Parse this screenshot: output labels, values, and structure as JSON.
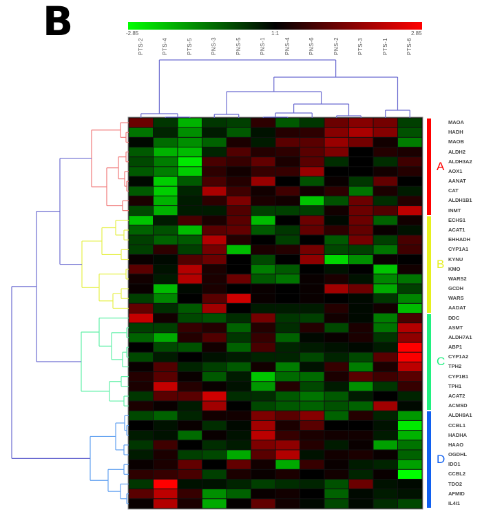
{
  "panel_label": "B",
  "chart_data": {
    "type": "heatmap",
    "color_scale": {
      "min": -2.85,
      "max": 2.85,
      "min_label": "-2.85",
      "mid_label": "1:1",
      "max_label": "2.85",
      "low_color": "#00ff00",
      "mid_color": "#000000",
      "high_color": "#ff0000"
    },
    "columns": [
      "PTS-2",
      "PTS-4",
      "PTS-5",
      "PNS-3",
      "PNS-5",
      "PNS-1",
      "PNS-4",
      "PNS-6",
      "PNS-2",
      "PTS-3",
      "PTS-1",
      "PTS-6"
    ],
    "rows": [
      "MAOA",
      "HADH",
      "MAOB",
      "ALDH2",
      "ALDH3A2",
      "AOX1",
      "AANAT",
      "CAT",
      "ALDH1B1",
      "INMT",
      "ECHS1",
      "ACAT1",
      "EHHADH",
      "CYP1A1",
      "KYNU",
      "KMO",
      "WARS2",
      "GCDH",
      "WARS",
      "AADAT",
      "DDC",
      "ASMT",
      "ALDH7A1",
      "ABP1",
      "CYP1A2",
      "TPH2",
      "CYP1B1",
      "TPH1",
      "ACAT2",
      "ACMSD",
      "ALDH9A1",
      "CCBL1",
      "HADHA",
      "HAAO",
      "OGDHL",
      "IDO1",
      "CCBL2",
      "TDO2",
      "AFMID",
      "IL4I1"
    ],
    "values": [
      [
        1.2,
        -0.6,
        -2.0,
        -0.6,
        -0.7,
        0.5,
        -1.0,
        -0.6,
        1.2,
        1.5,
        1.3,
        -0.7
      ],
      [
        -1.3,
        -0.4,
        -1.6,
        -0.3,
        -1.0,
        -0.2,
        0.4,
        0.5,
        1.5,
        1.9,
        1.5,
        -0.9
      ],
      [
        -0.1,
        -1.2,
        -1.6,
        -1.1,
        0.3,
        -0.3,
        1.0,
        1.0,
        1.7,
        1.3,
        0.2,
        -1.4
      ],
      [
        -1.0,
        -2.0,
        -2.1,
        -0.4,
        0.9,
        0.4,
        0.5,
        1.0,
        1.4,
        0.0,
        0.4,
        0.3
      ],
      [
        -0.8,
        -1.4,
        -2.6,
        0.8,
        0.6,
        1.1,
        0.3,
        1.0,
        -0.5,
        0.0,
        -0.5,
        0.7
      ],
      [
        -1.0,
        -1.4,
        -2.3,
        0.5,
        0.2,
        0.6,
        0.6,
        1.7,
        0.0,
        0.0,
        0.2,
        0.4
      ],
      [
        -0.1,
        -2.3,
        -1.0,
        0.8,
        0.4,
        1.7,
        0.0,
        -0.9,
        0.1,
        -0.6,
        1.1,
        0.0
      ],
      [
        -1.0,
        -2.3,
        -0.4,
        1.9,
        0.7,
        0.2,
        0.7,
        0.2,
        0.5,
        -1.3,
        0.3,
        -0.3
      ],
      [
        0.3,
        -2.0,
        -0.3,
        0.5,
        1.4,
        0.3,
        0.2,
        -2.2,
        -0.9,
        1.2,
        -0.5,
        0.4
      ],
      [
        -0.8,
        -2.0,
        -0.3,
        -0.3,
        0.9,
        -0.7,
        -0.7,
        -0.7,
        0.2,
        1.2,
        0.9,
        2.1
      ],
      [
        -2.2,
        -0.3,
        0.8,
        0.3,
        1.0,
        -2.1,
        0.0,
        1.2,
        -0.1,
        1.2,
        -1.1,
        0.2
      ],
      [
        -1.1,
        -0.9,
        -2.1,
        1.0,
        1.1,
        -1.0,
        -0.6,
        1.1,
        0.5,
        1.1,
        0.1,
        -0.2
      ],
      [
        -0.7,
        -1.1,
        -1.0,
        2.0,
        0.4,
        0.0,
        -0.7,
        0.0,
        -1.0,
        1.3,
        -0.7,
        0.8
      ],
      [
        -0.7,
        0.5,
        -0.7,
        1.3,
        -2.1,
        0.3,
        0.4,
        1.3,
        -0.8,
        -0.7,
        -1.3,
        0.7
      ],
      [
        0.1,
        -0.1,
        0.9,
        1.2,
        0.0,
        -0.8,
        0.0,
        1.6,
        -2.4,
        -1.6,
        0.1,
        0.0
      ],
      [
        1.0,
        -0.2,
        2.0,
        0.3,
        0.0,
        -1.4,
        -1.0,
        0.0,
        -0.2,
        0.0,
        -2.2,
        0.2
      ],
      [
        0.2,
        -0.3,
        2.0,
        0.3,
        1.2,
        -1.0,
        -1.3,
        0.1,
        0.3,
        -0.2,
        -1.5,
        -1.3
      ],
      [
        0.1,
        -2.1,
        -0.1,
        0.3,
        0.0,
        0.1,
        0.0,
        0.1,
        1.8,
        1.2,
        -1.9,
        -0.7
      ],
      [
        -0.7,
        -1.5,
        0.0,
        1.0,
        2.3,
        0.1,
        0.0,
        0.1,
        0.0,
        -0.1,
        -0.6,
        -1.5
      ],
      [
        1.1,
        -0.5,
        -1.0,
        1.8,
        0.0,
        -0.3,
        -0.3,
        -0.3,
        0.4,
        -0.1,
        0.2,
        -2.1
      ],
      [
        2.2,
        0.2,
        -0.8,
        -0.9,
        -0.5,
        1.3,
        -0.6,
        -0.7,
        0.2,
        -0.1,
        -1.4,
        0.8
      ],
      [
        -0.7,
        -0.7,
        0.6,
        0.4,
        -1.1,
        0.4,
        -0.5,
        0.4,
        -0.8,
        0.3,
        -1.3,
        2.0
      ],
      [
        -1.1,
        -1.9,
        0.4,
        0.9,
        -0.6,
        0.6,
        -1.1,
        -0.1,
        0.1,
        0.3,
        -0.6,
        1.6
      ],
      [
        0.0,
        -0.8,
        -0.9,
        0.2,
        -1.1,
        0.8,
        -0.4,
        -0.3,
        -0.2,
        -0.1,
        -0.3,
        2.85
      ],
      [
        -0.8,
        -0.3,
        0.0,
        -0.2,
        -0.3,
        -0.4,
        -0.4,
        -0.8,
        -0.4,
        -0.8,
        1.0,
        2.8
      ],
      [
        0.1,
        0.9,
        -0.4,
        -0.7,
        -1.0,
        0.2,
        -1.4,
        -0.2,
        0.6,
        -1.4,
        0.3,
        2.1
      ],
      [
        0.4,
        1.0,
        0.1,
        -1.0,
        -0.3,
        -2.2,
        -1.2,
        -1.2,
        0.3,
        1.0,
        0.7,
        1.0
      ],
      [
        0.3,
        2.2,
        0.4,
        0.1,
        -0.2,
        -1.7,
        0.4,
        -0.8,
        -0.3,
        -1.6,
        -0.6,
        0.6
      ],
      [
        -0.6,
        1.0,
        1.0,
        2.3,
        -0.5,
        -0.5,
        -1.0,
        -1.3,
        -1.0,
        -0.3,
        0.0,
        -0.4
      ],
      [
        0.3,
        0.1,
        -0.3,
        1.8,
        0.0,
        -0.8,
        -1.0,
        -1.1,
        -0.9,
        -1.1,
        1.8,
        -0.1
      ],
      [
        -0.8,
        -1.1,
        -0.4,
        0.2,
        0.2,
        1.4,
        1.0,
        1.5,
        -1.1,
        0.4,
        -0.4,
        -1.7
      ],
      [
        0.0,
        -0.2,
        0.1,
        -0.5,
        -0.1,
        1.8,
        0.3,
        1.0,
        0.0,
        0.0,
        -0.2,
        -2.6
      ],
      [
        -0.3,
        -0.2,
        -1.2,
        0.1,
        -0.2,
        2.1,
        0.6,
        0.3,
        0.2,
        0.2,
        -0.3,
        -2.0
      ],
      [
        -0.6,
        0.7,
        0.0,
        -0.5,
        -0.3,
        1.4,
        1.6,
        0.4,
        -0.3,
        0.1,
        -1.8,
        -1.3
      ],
      [
        -0.3,
        0.3,
        -0.7,
        -0.8,
        -1.9,
        1.0,
        2.0,
        -0.2,
        0.2,
        0.3,
        0.1,
        -1.1
      ],
      [
        0.1,
        0.3,
        1.1,
        0.0,
        1.1,
        0.2,
        -1.9,
        0.6,
        0.1,
        -0.3,
        -0.4,
        -1.8
      ],
      [
        0.5,
        0.6,
        0.8,
        -0.7,
        0.3,
        0.1,
        0.3,
        0.0,
        0.2,
        -0.4,
        0.1,
        -2.85
      ],
      [
        -0.6,
        2.85,
        -0.2,
        -0.2,
        -0.4,
        -0.7,
        -0.5,
        -0.4,
        -0.9,
        1.2,
        -0.2,
        -0.1
      ],
      [
        1.0,
        2.1,
        0.6,
        -1.6,
        -1.1,
        0.1,
        0.2,
        0.0,
        -1.1,
        -0.1,
        -0.3,
        -0.2
      ],
      [
        0.1,
        2.0,
        0.3,
        -1.9,
        0.05,
        1.1,
        0.2,
        -0.1,
        -0.8,
        -0.1,
        -0.5,
        -0.8
      ]
    ],
    "row_clusters": [
      {
        "label": "A",
        "color": "#ff0000",
        "first_row": "MAOA",
        "last_row": "INMT"
      },
      {
        "label": "B",
        "color": "#e6f01e",
        "first_row": "ECHS1",
        "last_row": "AADAT"
      },
      {
        "label": "C",
        "color": "#20f080",
        "first_row": "DDC",
        "last_row": "ACMSD"
      },
      {
        "label": "D",
        "color": "#1060f0",
        "first_row": "ALDH9A1",
        "last_row": "IL4I1"
      }
    ],
    "dendrogram_colors": {
      "trunk": "#6a6ad0",
      "A": "#f07a7a",
      "B": "#e6f04a",
      "C": "#60f0a8",
      "D": "#60a0f0"
    }
  }
}
